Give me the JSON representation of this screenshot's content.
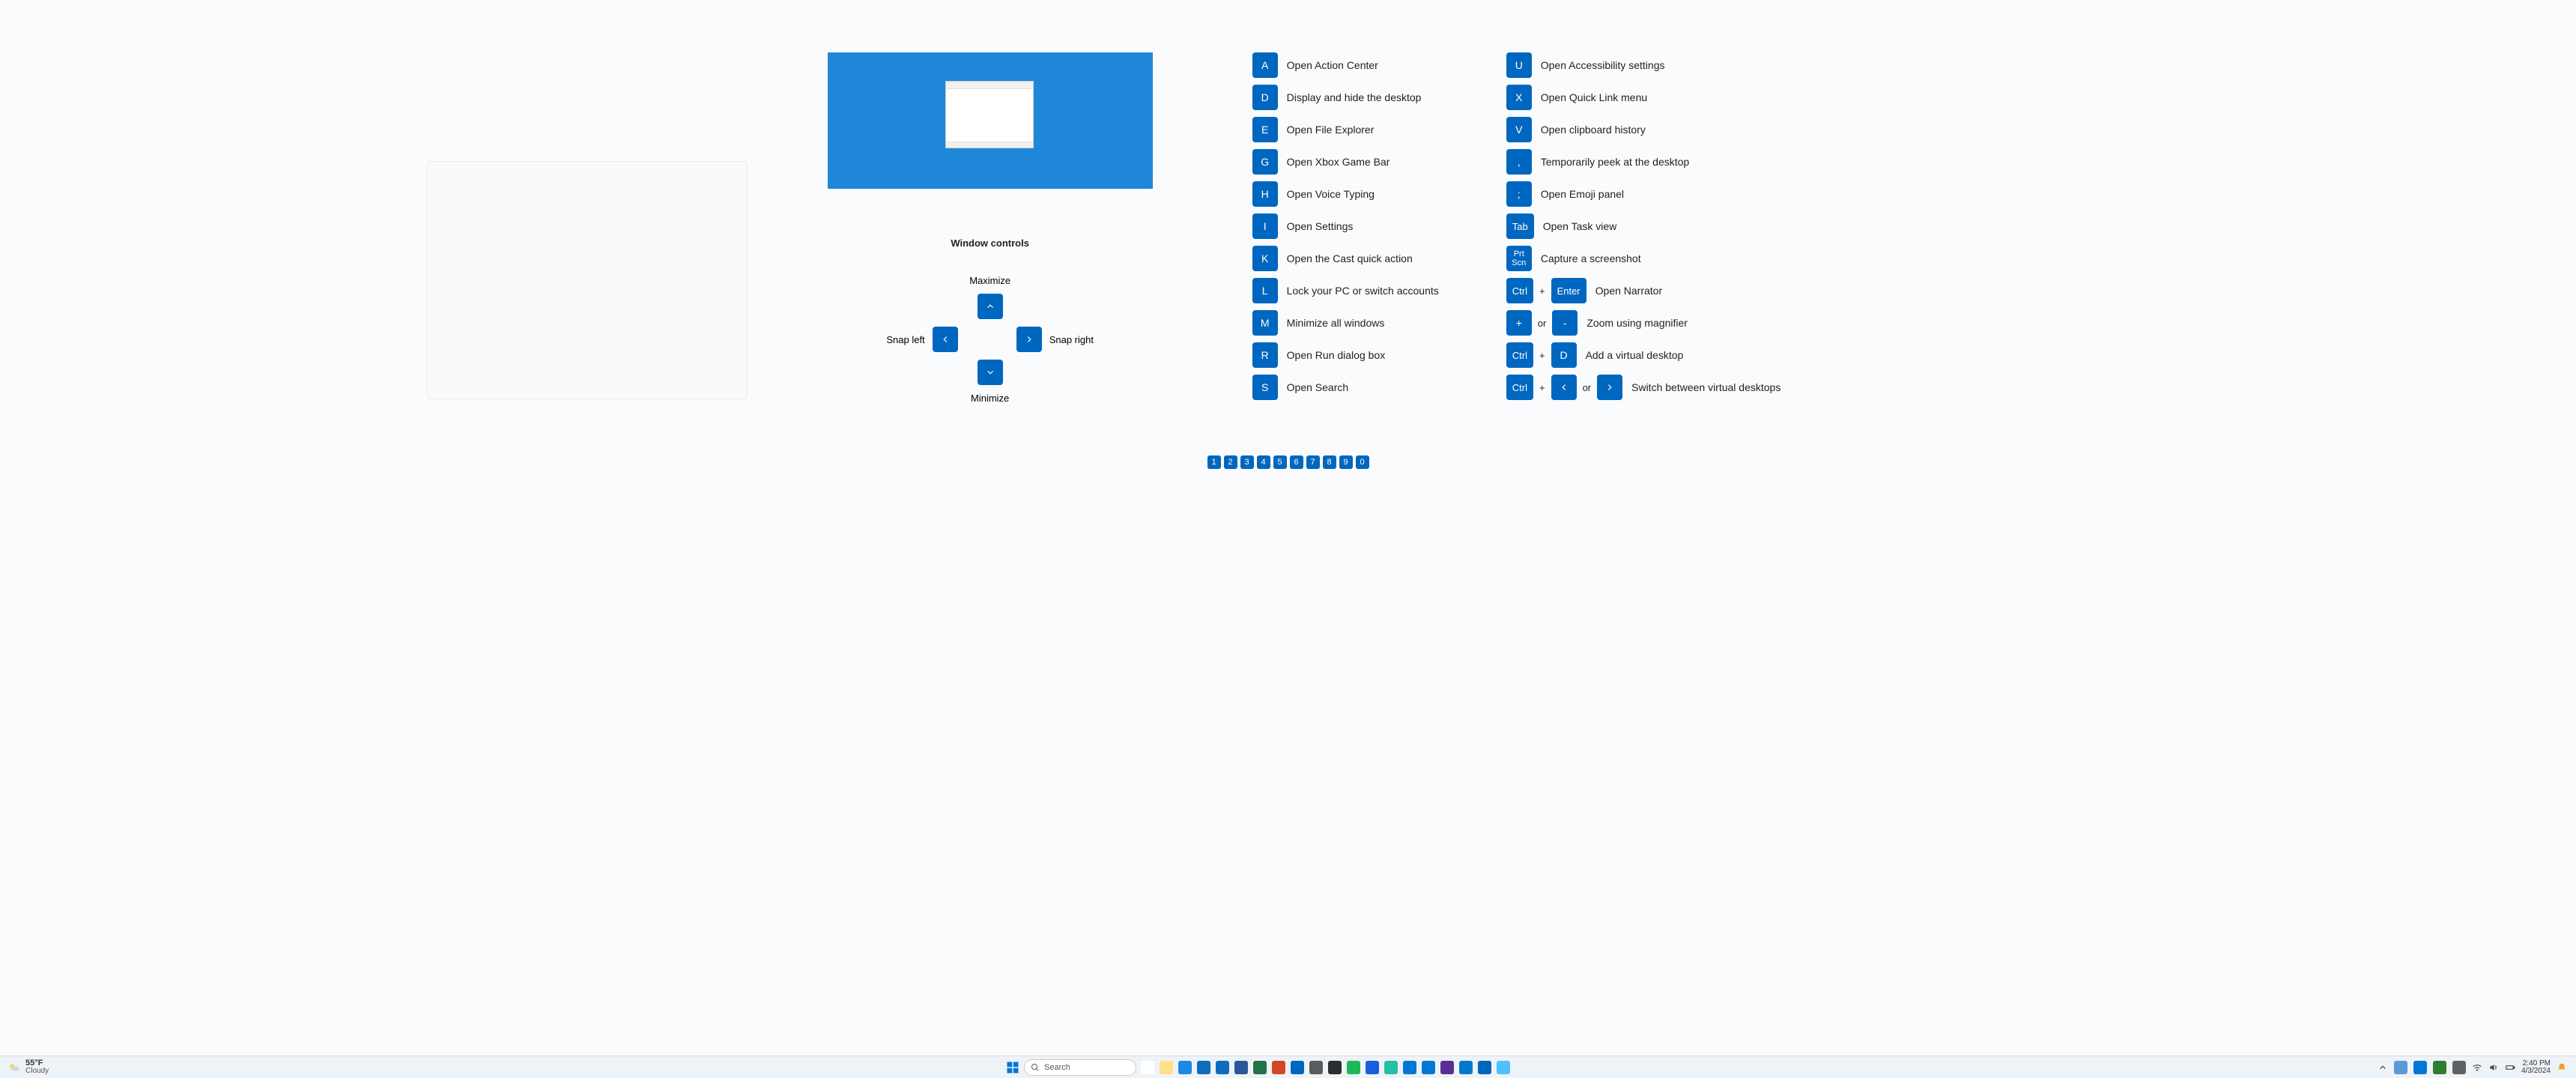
{
  "colors": {
    "key_bg": "#0067c0",
    "key_fg": "#ffffff",
    "page_bg": "#fafbfc",
    "taskbar_bg": "#eef3f8",
    "blue_desktop": "#1f87d8"
  },
  "window_controls": {
    "title": "Window controls",
    "maximize": "Maximize",
    "minimize": "Minimize",
    "snap_left": "Snap left",
    "snap_right": "Snap right"
  },
  "shortcuts_col1": [
    {
      "keys": [
        "A"
      ],
      "desc": "Open Action Center"
    },
    {
      "keys": [
        "D"
      ],
      "desc": "Display and hide the desktop"
    },
    {
      "keys": [
        "E"
      ],
      "desc": "Open File Explorer"
    },
    {
      "keys": [
        "G"
      ],
      "desc": "Open Xbox Game Bar"
    },
    {
      "keys": [
        "H"
      ],
      "desc": "Open Voice Typing"
    },
    {
      "keys": [
        "I"
      ],
      "desc": "Open Settings"
    },
    {
      "keys": [
        "K"
      ],
      "desc": "Open the Cast quick action"
    },
    {
      "keys": [
        "L"
      ],
      "desc": "Lock your PC or switch accounts"
    },
    {
      "keys": [
        "M"
      ],
      "desc": "Minimize all windows"
    },
    {
      "keys": [
        "R"
      ],
      "desc": "Open Run dialog box"
    },
    {
      "keys": [
        "S"
      ],
      "desc": "Open Search"
    }
  ],
  "shortcuts_col2": [
    {
      "keys": [
        "U"
      ],
      "desc": "Open Accessibility settings"
    },
    {
      "keys": [
        "X"
      ],
      "desc": "Open Quick Link menu"
    },
    {
      "keys": [
        "V"
      ],
      "desc": "Open clipboard history"
    },
    {
      "keys": [
        ","
      ],
      "desc": "Temporarily peek at the desktop"
    },
    {
      "keys": [
        ";"
      ],
      "desc": "Open Emoji panel"
    },
    {
      "keys": [
        "Tab"
      ],
      "desc": "Open Task view"
    },
    {
      "keys": [
        "Prt\nScn"
      ],
      "desc": "Capture a screenshot"
    },
    {
      "combo": [
        [
          "Ctrl"
        ],
        "+",
        [
          "Enter"
        ]
      ],
      "desc": "Open Narrator"
    },
    {
      "combo": [
        [
          "+"
        ],
        "or",
        [
          "-"
        ]
      ],
      "desc": "Zoom using magnifier"
    },
    {
      "combo": [
        [
          "Ctrl"
        ],
        "+",
        [
          "D"
        ]
      ],
      "desc": "Add a virtual desktop"
    },
    {
      "combo": [
        [
          "Ctrl"
        ],
        "+",
        [
          "←"
        ],
        "or",
        [
          "→"
        ]
      ],
      "desc": "Switch between virtual desktops"
    }
  ],
  "number_keys": [
    "1",
    "2",
    "3",
    "4",
    "5",
    "6",
    "7",
    "8",
    "9",
    "0"
  ],
  "taskbar": {
    "weather": {
      "temp": "55°F",
      "cond": "Cloudy"
    },
    "search_placeholder": "Search",
    "apps": [
      {
        "name": "copilot",
        "bg": "#ffffff"
      },
      {
        "name": "file-explorer",
        "bg": "#ffe08a"
      },
      {
        "name": "edge",
        "bg": "#1e88e5"
      },
      {
        "name": "outlook",
        "bg": "#0f6cbd"
      },
      {
        "name": "outlook-new",
        "bg": "#0f6cbd"
      },
      {
        "name": "word",
        "bg": "#2b579a"
      },
      {
        "name": "excel",
        "bg": "#217346"
      },
      {
        "name": "powerpoint",
        "bg": "#d24726"
      },
      {
        "name": "store",
        "bg": "#0067c0"
      },
      {
        "name": "settings",
        "bg": "#5b5b5b"
      },
      {
        "name": "terminal",
        "bg": "#2d2d2d"
      },
      {
        "name": "spotify",
        "bg": "#1db954"
      },
      {
        "name": "bitwarden",
        "bg": "#175ddc"
      },
      {
        "name": "vscode-insiders",
        "bg": "#24bfa5"
      },
      {
        "name": "vscode",
        "bg": "#0078d4"
      },
      {
        "name": "azure",
        "bg": "#0078d4"
      },
      {
        "name": "visual-studio",
        "bg": "#5c2d91"
      },
      {
        "name": "vscode2",
        "bg": "#007acc"
      },
      {
        "name": "powertoys",
        "bg": "#0067c0"
      },
      {
        "name": "devhome",
        "bg": "#4cc2ff"
      }
    ],
    "tray": [
      "chevron-up",
      "onedrive",
      "teams",
      "defender",
      "dropbox",
      "bluetooth",
      "network",
      "volume",
      "battery"
    ],
    "time": "2:40 PM",
    "date": "4/3/2024"
  }
}
